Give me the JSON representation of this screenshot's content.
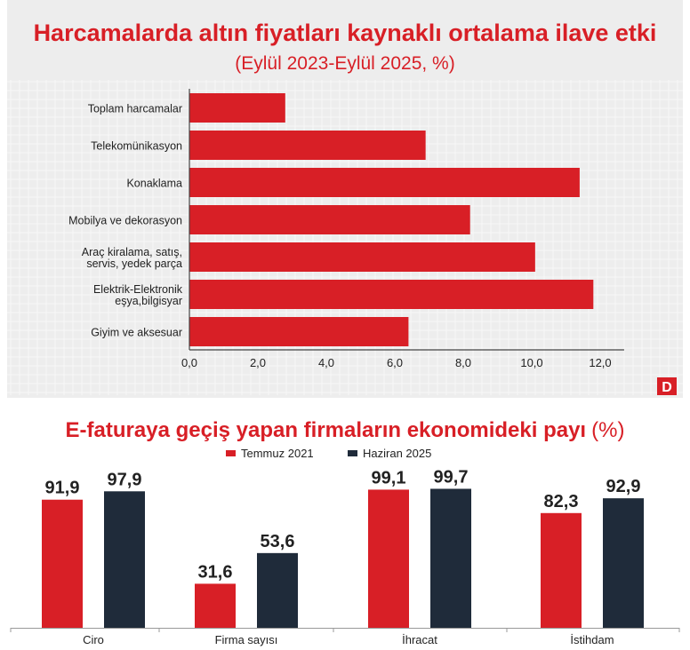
{
  "colors": {
    "red": "#d81f26",
    "navy": "#1f2b3a",
    "panel": "#ededed",
    "grid": "#f7f7f7"
  },
  "logo": "D",
  "chart_data": [
    {
      "type": "bar",
      "orientation": "horizontal",
      "title": "Harcamalarda altın fiyatları kaynaklı ortalama ilave etki",
      "subtitle": "(Eylül 2023-Eylül 2025, %)",
      "categories": [
        "Toplam harcamalar",
        "Telekomünikasyon",
        "Konaklama",
        "Mobilya ve dekorasyon",
        "Araç kiralama, satış, servis, yedek parça",
        "Elektrik-Elektronik eşya,bilgisyar",
        "Giyim ve aksesuar"
      ],
      "category_lines": [
        [
          "Toplam harcamalar"
        ],
        [
          "Telekomünikasyon"
        ],
        [
          "Konaklama"
        ],
        [
          "Mobilya ve dekorasyon"
        ],
        [
          "Araç kiralama, satış,",
          "servis, yedek parça"
        ],
        [
          "Elektrik-Elektronik",
          "eşya,bilgisyar"
        ],
        [
          "Giyim ve aksesuar"
        ]
      ],
      "values": [
        2.8,
        6.9,
        11.4,
        8.2,
        10.1,
        11.8,
        6.4
      ],
      "xlim": [
        0,
        12.7
      ],
      "xticks": [
        "0,0",
        "2,0",
        "4,0",
        "6,0",
        "8,0",
        "10,0",
        "12,0"
      ],
      "grid": true
    },
    {
      "type": "bar",
      "title": "E-faturaya geçiş yapan firmaların ekonomideki payı",
      "title_unit": "(%)",
      "categories": [
        "Ciro",
        "Firma sayısı",
        "İhracat",
        "İstihdam"
      ],
      "series": [
        {
          "name": "Temmuz 2021",
          "values": [
            91.9,
            31.6,
            99.1,
            82.3
          ],
          "labels": [
            "91,9",
            "31,6",
            "99,1",
            "82,3"
          ]
        },
        {
          "name": "Haziran 2025",
          "values": [
            97.9,
            53.6,
            99.7,
            92.9
          ],
          "labels": [
            "97,9",
            "53,6",
            "99,7",
            "92,9"
          ]
        }
      ],
      "legend": "top-center",
      "ylim": [
        0,
        100
      ],
      "grid": false
    }
  ]
}
